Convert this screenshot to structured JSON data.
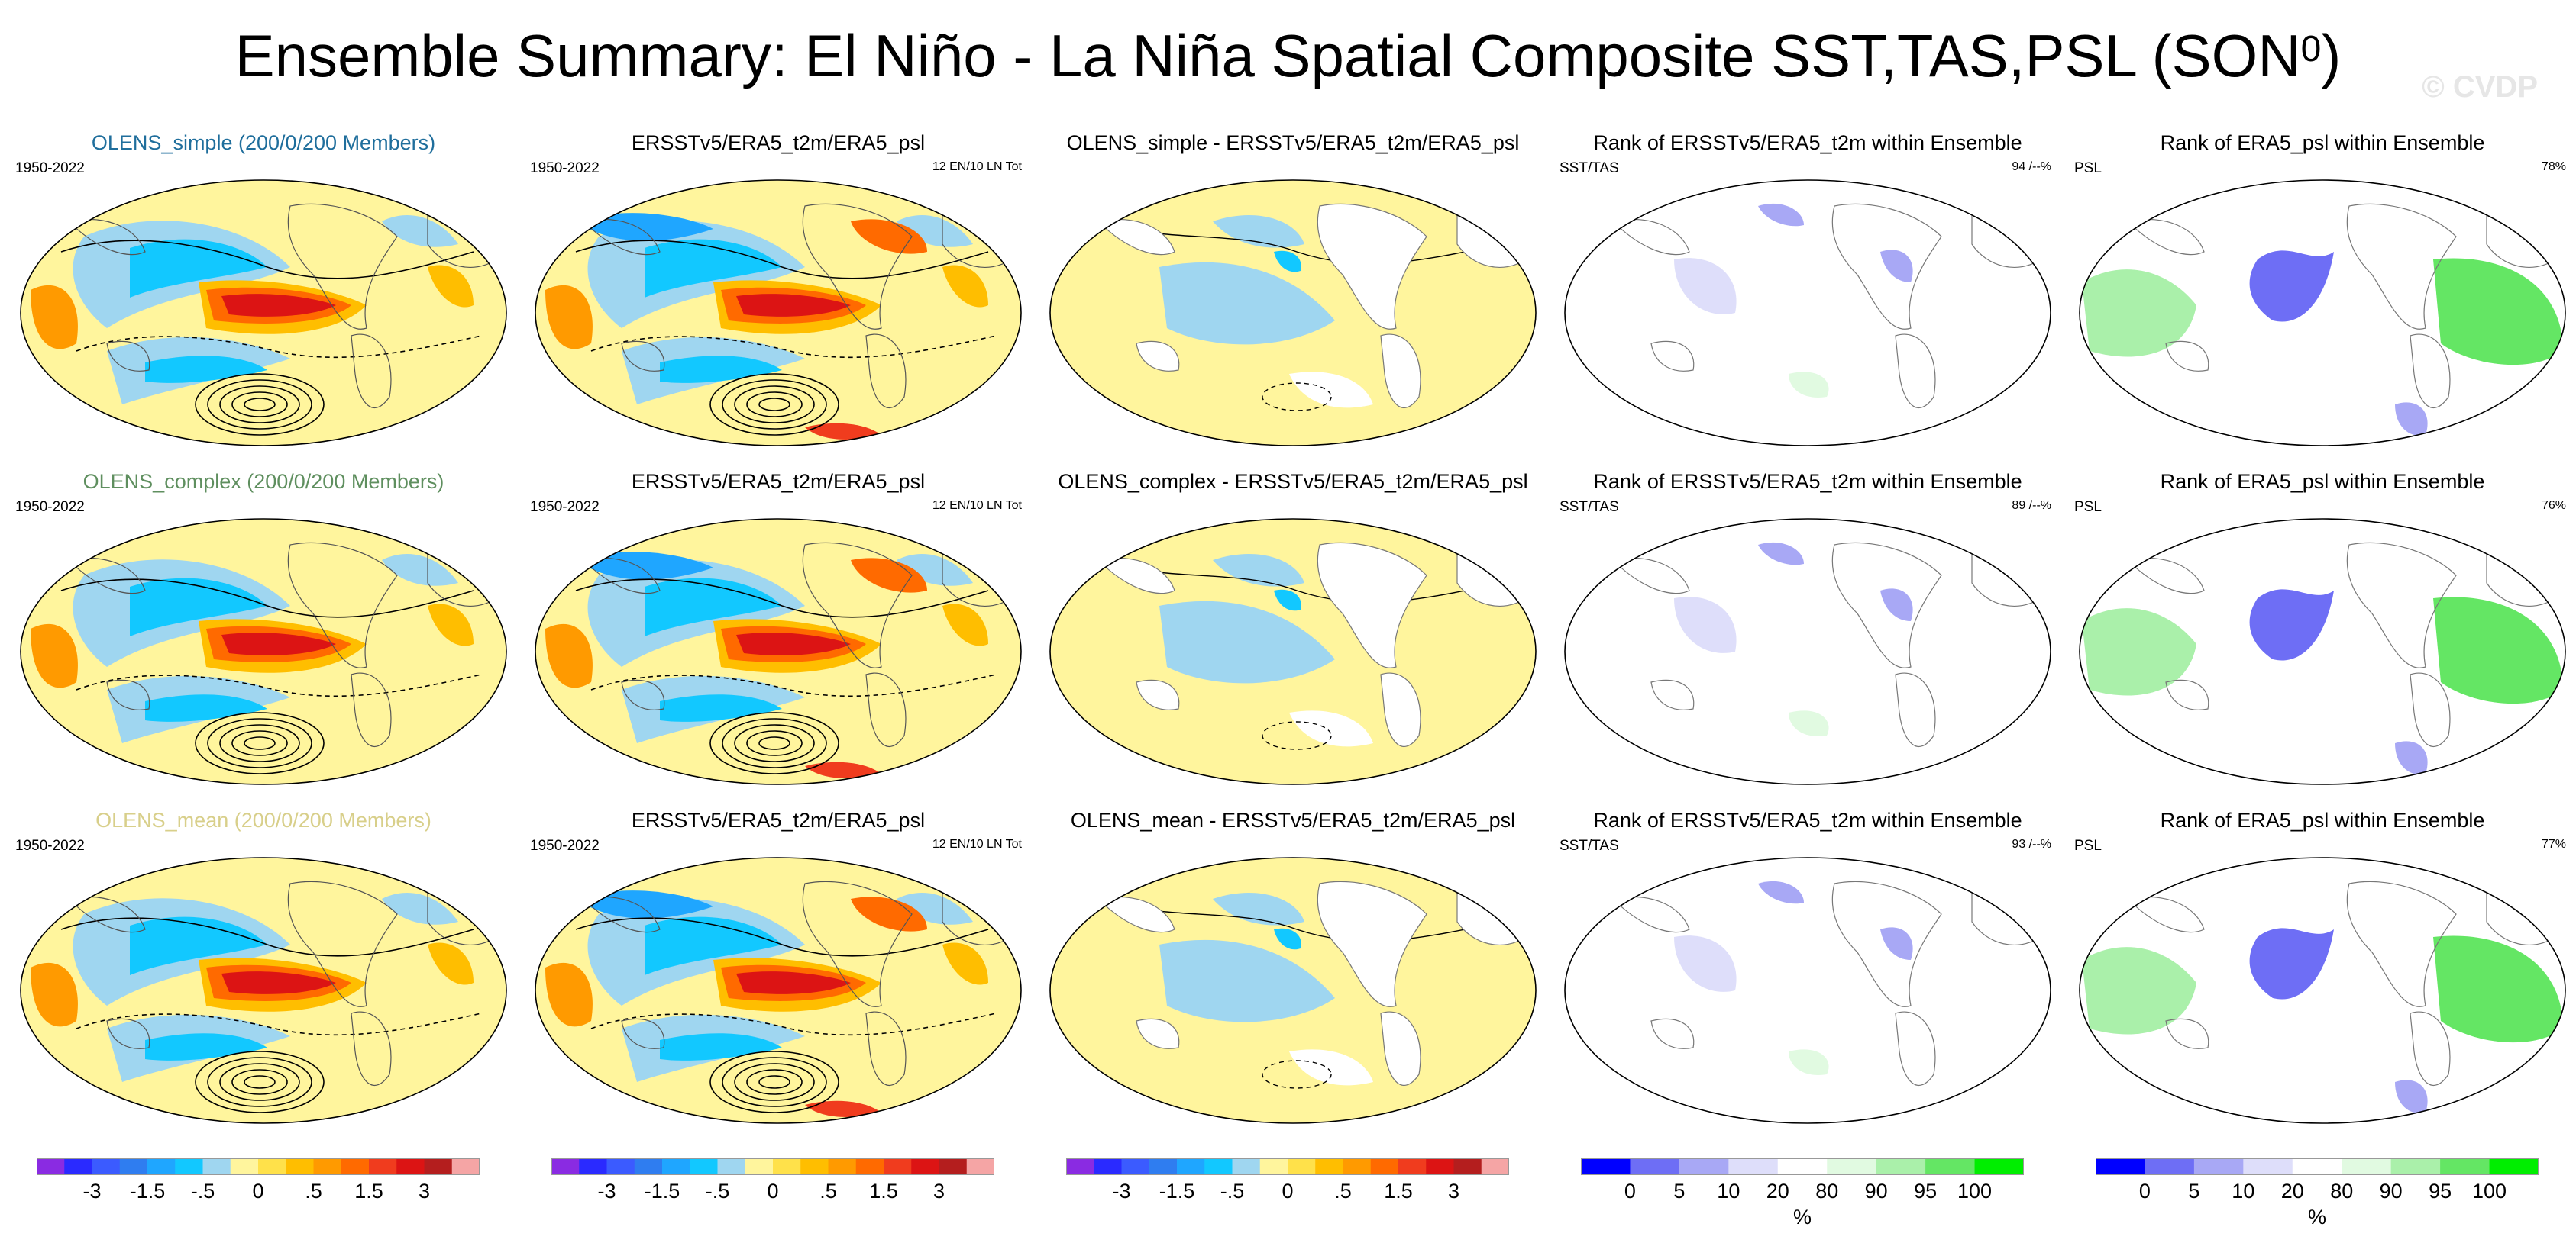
{
  "header": {
    "title": "Ensemble Summary: El Niño - La Niña Spatial Composite SST,TAS,PSL (SON",
    "title_sup": "0",
    "title_close": ")",
    "watermark": "© CVDP"
  },
  "colors": {
    "title_simple": "#1f6e9c",
    "title_complex": "#5f8f5f",
    "title_mean": "#d8cf8a"
  },
  "rows": [
    {
      "model_title": "OLENS_simple (200/0/200 Members)",
      "model_years": "1950-2022",
      "obs_title": "ERSSTv5/ERA5_t2m/ERA5_psl",
      "obs_years": "1950-2022",
      "obs_count": "12 EN/10 LN Tot",
      "diff_title": "OLENS_simple - ERSSTv5/ERA5_t2m/ERA5_psl",
      "rank_title": "Rank of ERSSTv5/ERA5_t2m within Ensemble",
      "rank_left": "SST/TAS",
      "rank_right": "94 /--%",
      "psl_title": "Rank of ERA5_psl within Ensemble",
      "psl_left": "PSL",
      "psl_right": "78%"
    },
    {
      "model_title": "OLENS_complex (200/0/200 Members)",
      "model_years": "1950-2022",
      "obs_title": "ERSSTv5/ERA5_t2m/ERA5_psl",
      "obs_years": "1950-2022",
      "obs_count": "12 EN/10 LN Tot",
      "diff_title": "OLENS_complex - ERSSTv5/ERA5_t2m/ERA5_psl",
      "rank_title": "Rank of ERSSTv5/ERA5_t2m within Ensemble",
      "rank_left": "SST/TAS",
      "rank_right": "89 /--%",
      "psl_title": "Rank of ERA5_psl within Ensemble",
      "psl_left": "PSL",
      "psl_right": "76%"
    },
    {
      "model_title": "OLENS_mean (200/0/200 Members)",
      "model_years": "1950-2022",
      "obs_title": "ERSSTv5/ERA5_t2m/ERA5_psl",
      "obs_years": "1950-2022",
      "obs_count": "12 EN/10 LN Tot",
      "diff_title": "OLENS_mean - ERSSTv5/ERA5_t2m/ERA5_psl",
      "rank_title": "Rank of ERSSTv5/ERA5_t2m within Ensemble",
      "rank_left": "SST/TAS",
      "rank_right": "93 /--%",
      "psl_title": "Rank of ERA5_psl within Ensemble",
      "psl_left": "PSL",
      "psl_right": "77%"
    }
  ],
  "chart_data": {
    "type": "heatmap",
    "title": "Ensemble Summary: El Niño - La Niña Spatial Composite SST,TAS,PSL (SON0)",
    "composite_colorbar": {
      "colors": [
        "#8a2be2",
        "#2a2aff",
        "#3b5bff",
        "#2f7df0",
        "#1fa6ff",
        "#12c8ff",
        "#9fd6f0",
        "#fff59d",
        "#ffe14a",
        "#ffbe00",
        "#ff9a00",
        "#ff6a00",
        "#f03c1e",
        "#dc1414",
        "#b41e1e",
        "#f5a5a5"
      ],
      "tick_labels": [
        "-3",
        "-1.5",
        "-.5",
        "0",
        ".5",
        "1.5",
        "3"
      ]
    },
    "rank_colorbar": {
      "colors": [
        "#0000ff",
        "#6e6ef5",
        "#a8a8f5",
        "#dedefa",
        "#ffffff",
        "#e1fae1",
        "#aaf0aa",
        "#64e664",
        "#00ee00"
      ],
      "tick_labels": [
        "0",
        "5",
        "10",
        "20",
        "80",
        "90",
        "95",
        "100"
      ],
      "unit": "%"
    }
  }
}
